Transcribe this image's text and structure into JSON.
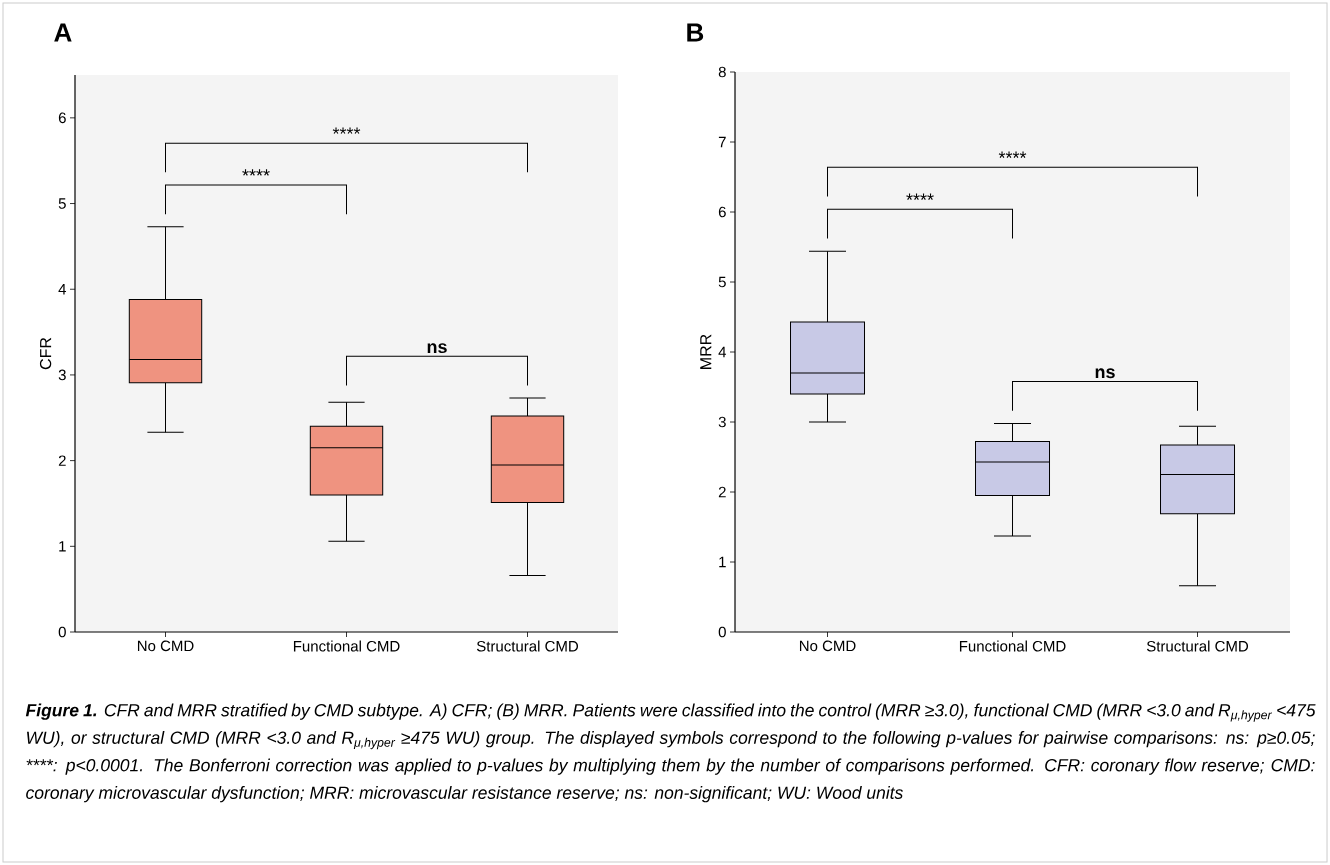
{
  "chart_data": [
    {
      "type": "box",
      "title": "A",
      "ylabel": "CFR",
      "categories": [
        "No CMD",
        "Functional CMD",
        "Structural CMD"
      ],
      "color": "#ef9380",
      "boxes": [
        {
          "low": 2.33,
          "q1": 2.91,
          "median": 3.18,
          "q3": 3.88,
          "high": 4.73
        },
        {
          "low": 1.06,
          "q1": 1.6,
          "median": 2.15,
          "q3": 2.4,
          "high": 2.68
        },
        {
          "low": 0.66,
          "q1": 1.51,
          "median": 1.95,
          "q3": 2.52,
          "high": 2.73
        }
      ],
      "ylim": [
        0,
        6.5
      ],
      "yticks": [
        0,
        1,
        2,
        3,
        4,
        5,
        6
      ],
      "annotations": [
        "****",
        "****",
        "ns",
        "**Figure 1.** CFR and MRR stratified by CMD subtype. A) CFR; (B) MRR. Patients were classified into the control (MRR ≥3.0), functional CMD (MRR <3.0 and R$_{μ,hyper}$ <475 WU), or structural CMD (MRR <3.0 and R$_{μ,hyper}$ ≥475 WU) group. The displayed symbols correspond to the following p-values for pairwise comparisons: ns: p≥0.05; ****: p<0.0001. The Bonferroni correction was applied to p-values by multiplying them by the number of comparisons performed. CFR: coronary flow reserve; CMD: coronary microvascular dysfunction; MRR: microvascular resistance reserve; ns: non-significant; WU: Wood units"
      ]
    },
    {
      "type": "box",
      "title": "B",
      "ylabel": "MRR",
      "categories": [
        "No CMD",
        "Functional CMD",
        "Structural CMD"
      ],
      "color": "#c8c9e6",
      "boxes": [
        {
          "low": 3.0,
          "q1": 3.4,
          "median": 3.7,
          "q3": 4.43,
          "high": 5.44
        },
        {
          "low": 1.37,
          "q1": 1.95,
          "median": 2.43,
          "q3": 2.72,
          "high": 2.98
        },
        {
          "low": 0.66,
          "q1": 1.69,
          "median": 2.25,
          "q3": 2.67,
          "high": 2.94
        }
      ],
      "ylim": [
        0,
        8
      ],
      "yticks": [
        0,
        1,
        2,
        3,
        4,
        5,
        6,
        7,
        8
      ],
      "annotations": [
        "****",
        "****",
        "ns"
      ]
    }
  ]
}
